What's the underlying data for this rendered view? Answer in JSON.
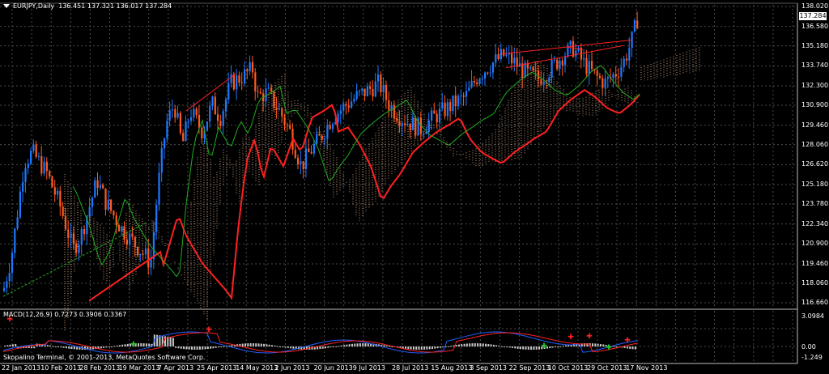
{
  "symbol_title": "EURJPY,Daily",
  "ohlc": "136.451 137.321 136.017 137.284",
  "current_price": "137.284",
  "price_axis": [
    "138.020",
    "136.580",
    "135.180",
    "133.740",
    "132.300",
    "130.900",
    "129.460",
    "128.060",
    "126.620",
    "125.180",
    "123.780",
    "122.340",
    "120.900",
    "119.460",
    "118.060",
    "116.660"
  ],
  "date_axis": [
    "22 Jan 2013",
    "10 Feb 2013",
    "28 Feb 2013",
    "19 Mar 2013",
    "7 Apr 2013",
    "25 Apr 2013",
    "14 May 2013",
    "2 Jun 2013",
    "20 Jun 2013",
    "9 Jul 2013",
    "28 Jul 2013",
    "15 Aug 2013",
    "3 Sep 2013",
    "22 Sep 2013",
    "10 Oct 2013",
    "29 Oct 2013",
    "17 Nov 2013"
  ],
  "macd_title": "MACD(12,26,9) 0.7273 0.3906 0.3367",
  "macd_axis": [
    "3.0984",
    "0.00",
    "-1.249"
  ],
  "copyright": "Skopalino Terminal, © 2001-2013, MetaQuotes Software Corp.",
  "colors": {
    "background": "#000000",
    "grid": "#4a4a4a",
    "bull_candle": "#1e78ff",
    "bear_candle": "#ff5a1e",
    "ma_slow": "#ff2020",
    "ma_fast": "#22aa22",
    "ichimoku_cloud": "#ffc8a0",
    "macd_hist": "#c8c8c8",
    "macd_line": "#2060ff",
    "signal_line": "#ff2020"
  },
  "chart_data": {
    "type": "candlestick",
    "title": "EURJPY,Daily",
    "timeframe": "Daily",
    "price_range": [
      116.66,
      138.02
    ],
    "indicators": [
      "Moving averages",
      "Ichimoku cloud",
      "MACD(12,26,9)"
    ],
    "approx_closes": [
      {
        "date": "22 Jan 2013",
        "close": 118.0
      },
      {
        "date": "10 Feb 2013",
        "close": 126.5
      },
      {
        "date": "28 Feb 2013",
        "close": 122.5
      },
      {
        "date": "19 Mar 2013",
        "close": 120.5
      },
      {
        "date": "7 Apr 2013",
        "close": 129.5
      },
      {
        "date": "25 Apr 2013",
        "close": 129.0
      },
      {
        "date": "14 May 2013",
        "close": 132.3
      },
      {
        "date": "2 Jun 2013",
        "close": 127.5
      },
      {
        "date": "20 Jun 2013",
        "close": 128.5
      },
      {
        "date": "9 Jul 2013",
        "close": 130.5
      },
      {
        "date": "28 Jul 2013",
        "close": 129.0
      },
      {
        "date": "15 Aug 2013",
        "close": 130.0
      },
      {
        "date": "3 Sep 2013",
        "close": 132.0
      },
      {
        "date": "22 Sep 2013",
        "close": 133.0
      },
      {
        "date": "10 Oct 2013",
        "close": 133.2
      },
      {
        "date": "29 Oct 2013",
        "close": 133.0
      },
      {
        "date": "17 Nov 2013",
        "close": 137.28
      }
    ]
  }
}
